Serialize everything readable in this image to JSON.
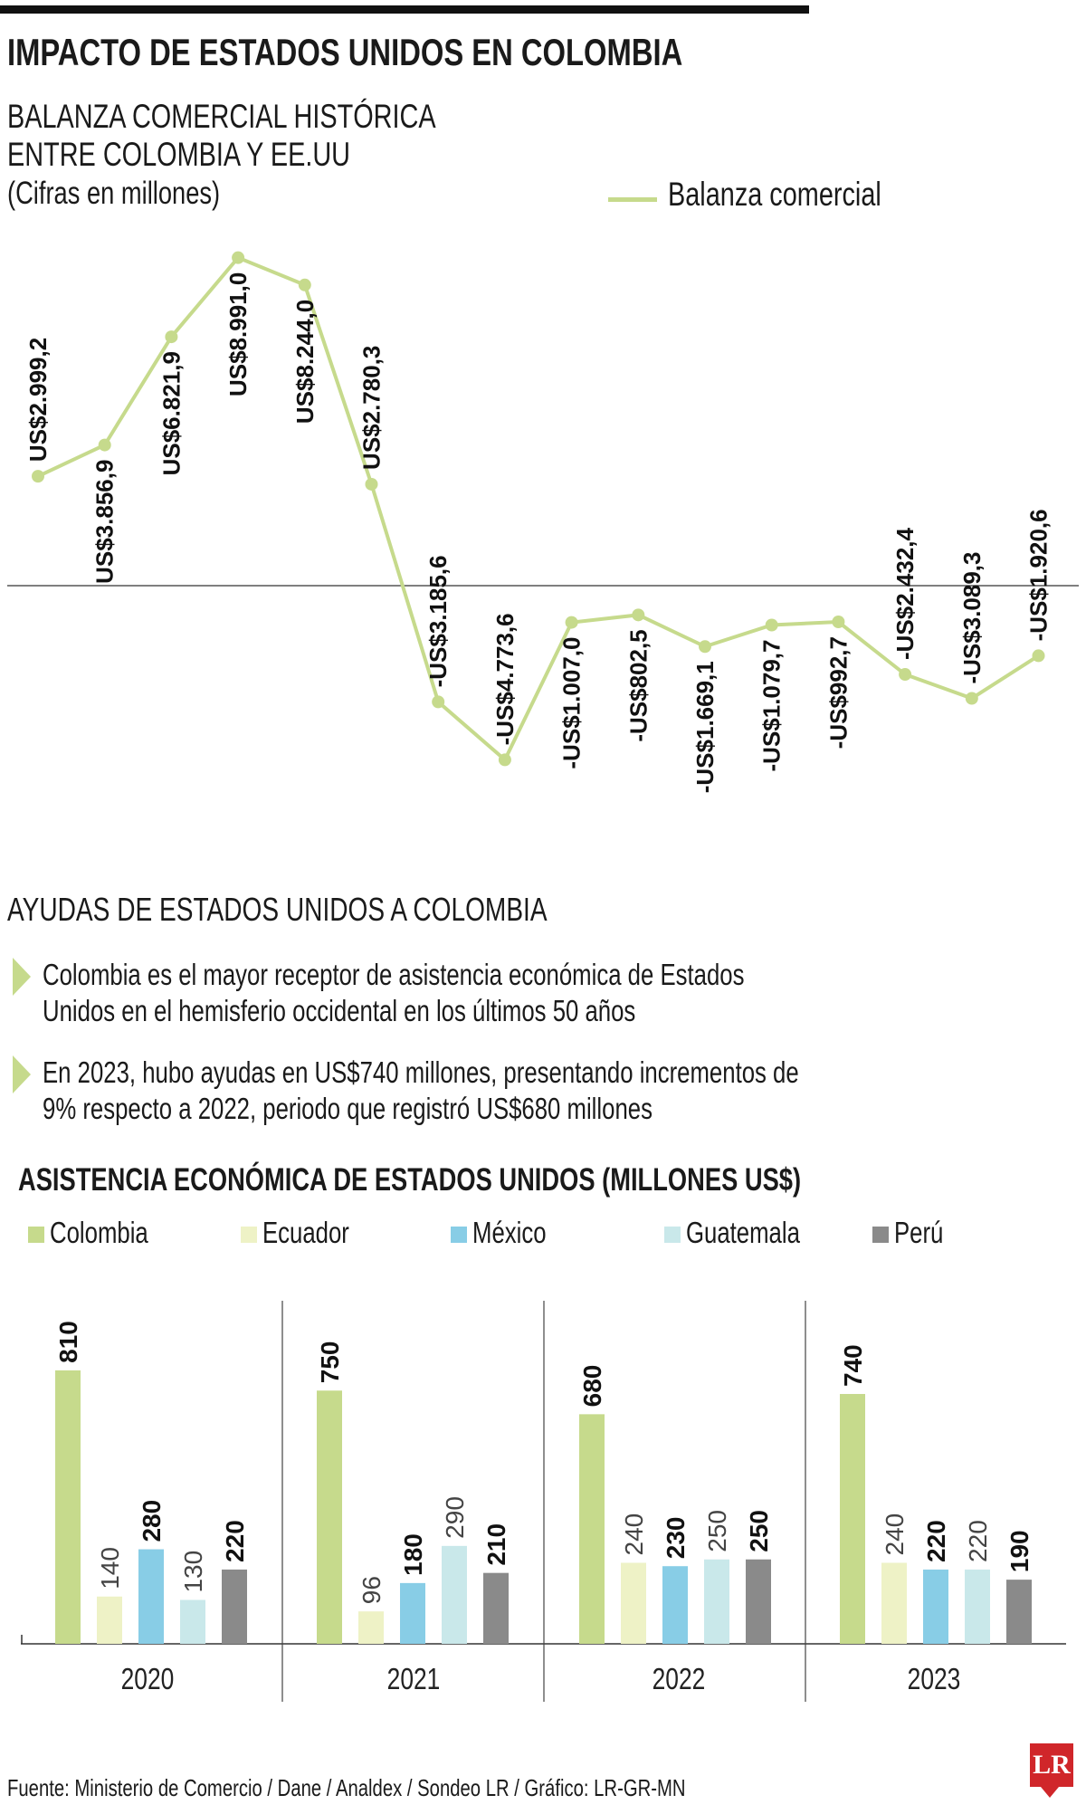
{
  "header": {
    "title": "IMPACTO DE ESTADOS UNIDOS EN COLOMBIA"
  },
  "chart_data": [
    {
      "type": "line",
      "title_lines": [
        "BALANZA COMERCIAL HISTÓRICA",
        "ENTRE COLOMBIA Y EE.UU"
      ],
      "subtitle": "(Cifras en millones)",
      "series": [
        {
          "name": "Balanza comercial",
          "color": "#c6da8c",
          "values": [
            2999.2,
            3856.9,
            6821.9,
            8991.0,
            8244.0,
            2780.3,
            -3185.6,
            -4773.6,
            -1007.0,
            -802.5,
            -1669.1,
            -1079.7,
            -992.7,
            -2432.4,
            -3089.3,
            -1920.6
          ],
          "labels": [
            "US$2.999,2",
            "US$3.856,9",
            "US$6.821,9",
            "US$8.991,0",
            "US$8.244,0",
            "US$2.780,3",
            "-US$3.185,6",
            "-US$4.773,6",
            "-US$1.007,0",
            "-US$802,5",
            "-US$1.669,1",
            "-US$1.079,7",
            "-US$992,7",
            "-US$2.432,4",
            "-US$3.089,3",
            "-US$1.920,6"
          ]
        }
      ],
      "zero_line": true,
      "legend_position": "top-right"
    },
    {
      "type": "bar",
      "title": "ASISTENCIA ECONÓMICA DE ESTADOS UNIDOS (MILLONES US$)",
      "categories": [
        "2020",
        "2021",
        "2022",
        "2023"
      ],
      "series": [
        {
          "name": "Colombia",
          "color": "#c6da8c",
          "values": [
            810,
            750,
            680,
            740
          ]
        },
        {
          "name": "Ecuador",
          "color": "#eef2c6",
          "values": [
            140,
            96,
            240,
            240
          ]
        },
        {
          "name": "México",
          "color": "#88cde6",
          "values": [
            280,
            180,
            230,
            220
          ]
        },
        {
          "name": "Guatemala",
          "color": "#c9e8ea",
          "values": [
            130,
            290,
            250,
            220
          ]
        },
        {
          "name": "Perú",
          "color": "#8a8a8a",
          "values": [
            220,
            210,
            250,
            190
          ]
        }
      ],
      "legend_position": "top"
    }
  ],
  "section2": {
    "title": "AYUDAS DE ESTADOS UNIDOS A COLOMBIA",
    "bullets": [
      {
        "line1": "Colombia es el mayor receptor de asistencia económica de Estados",
        "line2": "Unidos en el hemisferio occidental en los últimos 50 años"
      },
      {
        "line1": "En 2023, hubo ayudas en US$740 millones, presentando incrementos de",
        "line2": "9% respecto a 2022, periodo que registró US$680 millones"
      }
    ]
  },
  "footer": {
    "source": "Fuente: Ministerio de Comercio / Dane / Analdex / Sondeo LR / Gráfico: LR-GR-MN",
    "logo": "LR"
  }
}
